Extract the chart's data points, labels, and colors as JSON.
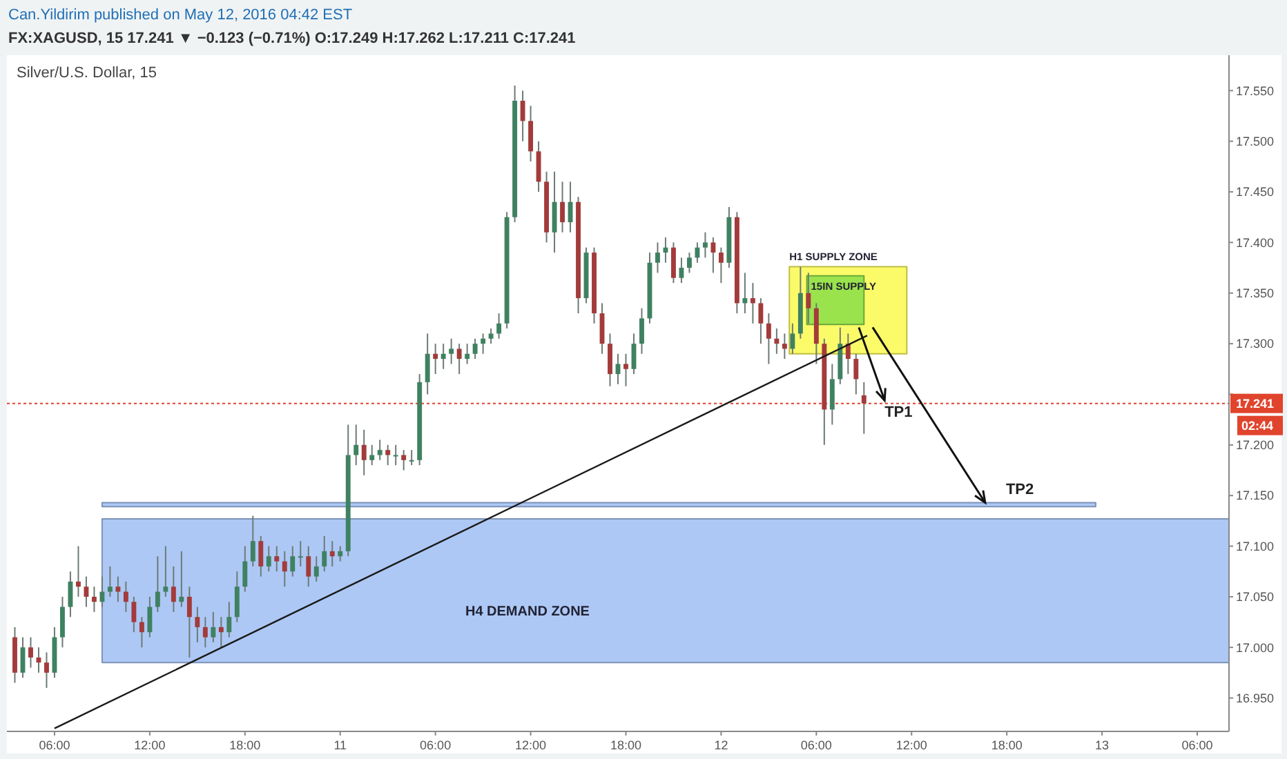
{
  "chart_data": {
    "type": "candlestick",
    "title": "FX:XAGUSD, 15 17.241 ▼ −0.123 (−0.71%) O:17.249 H:17.262 L:17.211 C:17.241",
    "subtitle": "Silver/U.S. Dollar, 15",
    "annotations": [
      "Can.Yildirim published on May 12, 2016 04:42 EST",
      "02:44",
      {
        "text": "TP1",
        "x": "2016-05-12T10:18",
        "y": 17.244
      },
      "TP2"
    ],
    "xlim": [
      "2016-05-10T03:00",
      "2016-05-13T08:00"
    ],
    "ylim": [
      16.917,
      17.585
    ],
    "xticks": [
      {
        "value": "2016-05-10T06:00",
        "label": "06:00"
      },
      {
        "value": "2016-05-10T12:00",
        "label": "12:00"
      },
      {
        "value": "2016-05-10T18:00",
        "label": "18:00"
      },
      {
        "value": "2016-05-11",
        "label": "11"
      },
      {
        "value": "2016-05-11T06:00",
        "label": "06:00"
      },
      {
        "value": "2016-05-11T12:00",
        "label": "12:00"
      },
      {
        "value": "2016-05-11T18:00",
        "label": "18:00"
      },
      {
        "value": "2016-05-12",
        "label": "12"
      },
      {
        "value": "2016-05-12T06:00",
        "label": "06:00"
      },
      {
        "value": "2016-05-12T12:00",
        "label": "12:00"
      },
      {
        "value": "2016-05-12T18:00",
        "label": "18:00"
      },
      {
        "value": "2016-05-13",
        "label": "13"
      },
      {
        "value": "2016-05-13T06:00",
        "label": "06:00"
      }
    ],
    "yticks": [
      {
        "value": 16.95,
        "label": "16.950"
      },
      {
        "value": 17.0,
        "label": "17.000"
      },
      {
        "value": 17.05,
        "label": "17.050"
      },
      {
        "value": 17.1,
        "label": "17.100"
      },
      {
        "value": 17.15,
        "label": "17.150"
      },
      {
        "value": 17.2,
        "label": "17.200"
      },
      {
        "value": 17.25,
        "label": null
      },
      {
        "value": 17.3,
        "label": "17.300"
      },
      {
        "value": 17.35,
        "label": "17.350"
      },
      {
        "value": 17.4,
        "label": "17.400"
      },
      {
        "value": 17.45,
        "label": "17.450"
      },
      {
        "value": 17.5,
        "label": "17.500"
      },
      {
        "value": 17.55,
        "label": "17.550"
      }
    ],
    "grid": false,
    "ref_lines": [
      {
        "axis": "y",
        "value": 17.241,
        "label": "17.241",
        "color": "#e0442c",
        "line_style": "dotted"
      }
    ],
    "series": [
      {
        "type": "area",
        "name": "H4 DEMAND ZONE",
        "x": [
          "2016-05-10T09:00",
          "2016-05-13T08:00",
          "2016-05-13T08:00",
          "2016-05-10T09:00",
          "2016-05-10T09:00"
        ],
        "values": [
          17.127,
          17.127,
          16.985,
          16.985,
          17.127
        ],
        "color": "#a4c2f4"
      },
      {
        "type": "area",
        "x": [
          "2016-05-10T09:00",
          "2016-05-12T23:36",
          "2016-05-12T23:36",
          "2016-05-10T09:00",
          "2016-05-10T09:00"
        ],
        "values": [
          17.143,
          17.143,
          17.139,
          17.139,
          17.143
        ],
        "color": "#a4c2f4"
      },
      {
        "type": "area",
        "name": "H1 SUPPLY ZONE",
        "x": [
          "2016-05-12T04:18",
          "2016-05-12T11:42",
          "2016-05-12T11:42",
          "2016-05-12T04:18",
          "2016-05-12T04:18"
        ],
        "values": [
          17.376,
          17.376,
          17.29,
          17.29,
          17.376
        ],
        "color": "#fbfb5a"
      },
      {
        "type": "area",
        "name": "15IN SUPPLY",
        "x": [
          "2016-05-12T05:24",
          "2016-05-12T09:00",
          "2016-05-12T09:00",
          "2016-05-12T05:24",
          "2016-05-12T05:24"
        ],
        "values": [
          17.367,
          17.367,
          17.319,
          17.319,
          17.367
        ],
        "color": "#8fe04a"
      },
      {
        "type": "line",
        "x": [
          "2016-05-10T06:00",
          "2016-05-12T09:12"
        ],
        "values": [
          16.92,
          17.308
        ],
        "color": "#1a1a1a"
      }
    ],
    "x": [
      "2016-05-10T03:30",
      "2016-05-10T04:00",
      "2016-05-10T04:30",
      "2016-05-10T05:00",
      "2016-05-10T05:30",
      "2016-05-10T06:00",
      "2016-05-10T06:30",
      "2016-05-10T07:00",
      "2016-05-10T07:30",
      "2016-05-10T08:00",
      "2016-05-10T08:30",
      "2016-05-10T09:00",
      "2016-05-10T09:30",
      "2016-05-10T10:00",
      "2016-05-10T10:30",
      "2016-05-10T11:00",
      "2016-05-10T11:30",
      "2016-05-10T12:00",
      "2016-05-10T12:30",
      "2016-05-10T13:00",
      "2016-05-10T13:30",
      "2016-05-10T14:00",
      "2016-05-10T14:30",
      "2016-05-10T15:00",
      "2016-05-10T15:30",
      "2016-05-10T16:00",
      "2016-05-10T16:30",
      "2016-05-10T17:00",
      "2016-05-10T17:30",
      "2016-05-10T18:00",
      "2016-05-10T18:30",
      "2016-05-10T19:00",
      "2016-05-10T19:30",
      "2016-05-10T20:00",
      "2016-05-10T20:30",
      "2016-05-10T21:00",
      "2016-05-10T21:30",
      "2016-05-10T22:00",
      "2016-05-10T22:30",
      "2016-05-10T23:00",
      "2016-05-10T23:30",
      "2016-05-11T00:00",
      "2016-05-11T00:30",
      "2016-05-11T01:00",
      "2016-05-11T01:30",
      "2016-05-11T02:00",
      "2016-05-11T02:30",
      "2016-05-11T03:00",
      "2016-05-11T03:30",
      "2016-05-11T04:00",
      "2016-05-11T04:30",
      "2016-05-11T05:00",
      "2016-05-11T05:30",
      "2016-05-11T06:00",
      "2016-05-11T06:30",
      "2016-05-11T07:00",
      "2016-05-11T07:30",
      "2016-05-11T08:00",
      "2016-05-11T08:30",
      "2016-05-11T09:00",
      "2016-05-11T09:30",
      "2016-05-11T10:00",
      "2016-05-11T10:30",
      "2016-05-11T11:00",
      "2016-05-11T11:30",
      "2016-05-11T12:00",
      "2016-05-11T12:30",
      "2016-05-11T13:00",
      "2016-05-11T13:30",
      "2016-05-11T14:00",
      "2016-05-11T14:30",
      "2016-05-11T15:00",
      "2016-05-11T15:30",
      "2016-05-11T16:00",
      "2016-05-11T16:30",
      "2016-05-11T17:00",
      "2016-05-11T17:30",
      "2016-05-11T18:00",
      "2016-05-11T18:30",
      "2016-05-11T19:00",
      "2016-05-11T19:30",
      "2016-05-11T20:00",
      "2016-05-11T20:30",
      "2016-05-11T21:00",
      "2016-05-11T21:30",
      "2016-05-11T22:00",
      "2016-05-11T22:30",
      "2016-05-11T23:00",
      "2016-05-11T23:30",
      "2016-05-12T00:00",
      "2016-05-12T00:30",
      "2016-05-12T01:00",
      "2016-05-12T01:30",
      "2016-05-12T02:00",
      "2016-05-12T02:30",
      "2016-05-12T03:00",
      "2016-05-12T03:30",
      "2016-05-12T04:00",
      "2016-05-12T04:30",
      "2016-05-12T05:00",
      "2016-05-12T05:30",
      "2016-05-12T06:00",
      "2016-05-12T06:30",
      "2016-05-12T07:00",
      "2016-05-12T07:30",
      "2016-05-12T08:00",
      "2016-05-12T08:30",
      "2016-05-12T09:00"
    ],
    "ohlc": [
      [
        17.01,
        17.02,
        16.965,
        16.975
      ],
      [
        16.975,
        17.01,
        16.97,
        17.0
      ],
      [
        17.0,
        17.01,
        16.98,
        16.99
      ],
      [
        16.99,
        17.0,
        16.975,
        16.985
      ],
      [
        16.985,
        16.995,
        16.96,
        16.975
      ],
      [
        16.975,
        17.02,
        16.97,
        17.01
      ],
      [
        17.01,
        17.05,
        17.0,
        17.04
      ],
      [
        17.04,
        17.075,
        17.03,
        17.065
      ],
      [
        17.065,
        17.1,
        17.05,
        17.06
      ],
      [
        17.06,
        17.07,
        17.04,
        17.05
      ],
      [
        17.05,
        17.06,
        17.035,
        17.045
      ],
      [
        17.045,
        17.07,
        17.04,
        17.055
      ],
      [
        17.055,
        17.08,
        17.05,
        17.06
      ],
      [
        17.06,
        17.07,
        17.045,
        17.055
      ],
      [
        17.055,
        17.065,
        17.035,
        17.045
      ],
      [
        17.045,
        17.05,
        17.015,
        17.025
      ],
      [
        17.025,
        17.03,
        17.0,
        17.015
      ],
      [
        17.015,
        17.05,
        17.01,
        17.04
      ],
      [
        17.04,
        17.09,
        17.035,
        17.055
      ],
      [
        17.055,
        17.1,
        17.05,
        17.06
      ],
      [
        17.06,
        17.08,
        17.035,
        17.045
      ],
      [
        17.045,
        17.095,
        17.04,
        17.05
      ],
      [
        17.05,
        17.06,
        16.99,
        17.03
      ],
      [
        17.03,
        17.04,
        17.005,
        17.02
      ],
      [
        17.02,
        17.03,
        17.0,
        17.01
      ],
      [
        17.01,
        17.035,
        17.005,
        17.02
      ],
      [
        17.02,
        17.03,
        17.0,
        17.015
      ],
      [
        17.015,
        17.045,
        17.01,
        17.03
      ],
      [
        17.03,
        17.075,
        17.025,
        17.06
      ],
      [
        17.06,
        17.1,
        17.055,
        17.085
      ],
      [
        17.085,
        17.13,
        17.08,
        17.105
      ],
      [
        17.105,
        17.11,
        17.07,
        17.08
      ],
      [
        17.08,
        17.1,
        17.075,
        17.09
      ],
      [
        17.09,
        17.1,
        17.075,
        17.085
      ],
      [
        17.085,
        17.095,
        17.06,
        17.075
      ],
      [
        17.075,
        17.1,
        17.07,
        17.09
      ],
      [
        17.09,
        17.105,
        17.08,
        17.09
      ],
      [
        17.09,
        17.1,
        17.06,
        17.07
      ],
      [
        17.07,
        17.09,
        17.065,
        17.08
      ],
      [
        17.08,
        17.11,
        17.075,
        17.095
      ],
      [
        17.095,
        17.105,
        17.08,
        17.09
      ],
      [
        17.09,
        17.1,
        17.085,
        17.095
      ],
      [
        17.095,
        17.22,
        17.09,
        17.19
      ],
      [
        17.19,
        17.22,
        17.18,
        17.2
      ],
      [
        17.2,
        17.215,
        17.17,
        17.185
      ],
      [
        17.185,
        17.2,
        17.18,
        17.19
      ],
      [
        17.19,
        17.205,
        17.185,
        17.195
      ],
      [
        17.195,
        17.2,
        17.18,
        17.19
      ],
      [
        17.19,
        17.2,
        17.18,
        17.19
      ],
      [
        17.19,
        17.195,
        17.175,
        17.185
      ],
      [
        17.185,
        17.195,
        17.18,
        17.185
      ],
      [
        17.185,
        17.27,
        17.18,
        17.262
      ],
      [
        17.262,
        17.31,
        17.25,
        17.29
      ],
      [
        17.29,
        17.3,
        17.27,
        17.285
      ],
      [
        17.285,
        17.3,
        17.275,
        17.29
      ],
      [
        17.29,
        17.305,
        17.28,
        17.295
      ],
      [
        17.295,
        17.3,
        17.27,
        17.285
      ],
      [
        17.285,
        17.3,
        17.28,
        17.29
      ],
      [
        17.29,
        17.305,
        17.285,
        17.3
      ],
      [
        17.3,
        17.31,
        17.29,
        17.305
      ],
      [
        17.305,
        17.315,
        17.3,
        17.31
      ],
      [
        17.31,
        17.33,
        17.305,
        17.32
      ],
      [
        17.32,
        17.43,
        17.315,
        17.425
      ],
      [
        17.425,
        17.555,
        17.42,
        17.54
      ],
      [
        17.54,
        17.55,
        17.5,
        17.52
      ],
      [
        17.52,
        17.535,
        17.48,
        17.49
      ],
      [
        17.49,
        17.5,
        17.45,
        17.46
      ],
      [
        17.46,
        17.47,
        17.4,
        17.41
      ],
      [
        17.41,
        17.47,
        17.39,
        17.44
      ],
      [
        17.44,
        17.46,
        17.41,
        17.42
      ],
      [
        17.42,
        17.46,
        17.41,
        17.44
      ],
      [
        17.44,
        17.445,
        17.33,
        17.345
      ],
      [
        17.345,
        17.395,
        17.34,
        17.39
      ],
      [
        17.39,
        17.395,
        17.32,
        17.33
      ],
      [
        17.33,
        17.34,
        17.29,
        17.3
      ],
      [
        17.3,
        17.31,
        17.258,
        17.27
      ],
      [
        17.27,
        17.29,
        17.26,
        17.28
      ],
      [
        17.28,
        17.29,
        17.258,
        17.275
      ],
      [
        17.275,
        17.31,
        17.27,
        17.3
      ],
      [
        17.3,
        17.335,
        17.29,
        17.325
      ],
      [
        17.325,
        17.39,
        17.32,
        17.38
      ],
      [
        17.38,
        17.4,
        17.37,
        17.39
      ],
      [
        17.39,
        17.405,
        17.38,
        17.395
      ],
      [
        17.395,
        17.4,
        17.36,
        17.365
      ],
      [
        17.365,
        17.385,
        17.36,
        17.375
      ],
      [
        17.375,
        17.39,
        17.37,
        17.385
      ],
      [
        17.385,
        17.4,
        17.38,
        17.395
      ],
      [
        17.395,
        17.41,
        17.385,
        17.4
      ],
      [
        17.4,
        17.405,
        17.37,
        17.39
      ],
      [
        17.39,
        17.395,
        17.36,
        17.38
      ],
      [
        17.38,
        17.435,
        17.375,
        17.425
      ],
      [
        17.425,
        17.43,
        17.33,
        17.34
      ],
      [
        17.34,
        17.37,
        17.33,
        17.345
      ],
      [
        17.345,
        17.36,
        17.32,
        17.34
      ],
      [
        17.34,
        17.345,
        17.3,
        17.32
      ],
      [
        17.32,
        17.33,
        17.28,
        17.305
      ],
      [
        17.305,
        17.315,
        17.29,
        17.3
      ],
      [
        17.3,
        17.31,
        17.285,
        17.295
      ],
      [
        17.295,
        17.32,
        17.29,
        17.31
      ],
      [
        17.31,
        17.376,
        17.305,
        17.35
      ],
      [
        17.35,
        17.37,
        17.32,
        17.335
      ],
      [
        17.335,
        17.34,
        17.28,
        17.3
      ],
      [
        17.3,
        17.305,
        17.2,
        17.235
      ],
      [
        17.235,
        17.28,
        17.22,
        17.265
      ],
      [
        17.265,
        17.316,
        17.26,
        17.3
      ],
      [
        17.3,
        17.31,
        17.27,
        17.285
      ],
      [
        17.285,
        17.29,
        17.25,
        17.265
      ],
      [
        17.249,
        17.262,
        17.211,
        17.241
      ]
    ]
  }
}
